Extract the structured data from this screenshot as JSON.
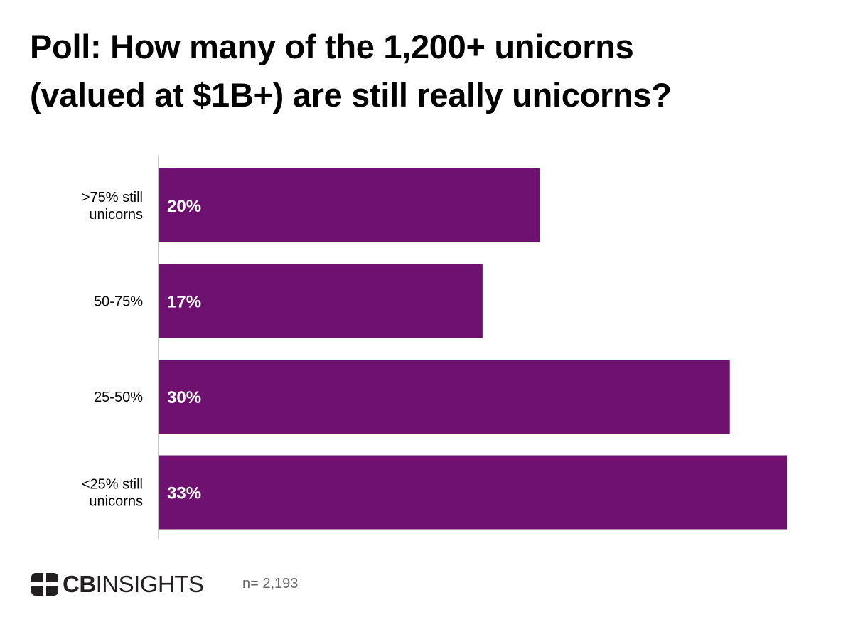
{
  "chart_data": {
    "type": "bar",
    "orientation": "horizontal",
    "title_lines": [
      "Poll: How many of the 1,200+ unicorns",
      "(valued at $1B+) are still really unicorns?"
    ],
    "categories": [
      [
        ">75% still",
        "unicorns"
      ],
      [
        "50-75%"
      ],
      [
        "25-50%"
      ],
      [
        "<25% still",
        "unicorns"
      ]
    ],
    "values": [
      20,
      17,
      30,
      33
    ],
    "value_labels": [
      "20%",
      "17%",
      "30%",
      "33%"
    ],
    "xlim": [
      0,
      33
    ],
    "grid": false,
    "bar_color": "#6f1170",
    "axis_color": "#999999"
  },
  "footer": {
    "logo_bold": "CB",
    "logo_regular": "INSIGHTS",
    "sample_size": "n= 2,193"
  }
}
